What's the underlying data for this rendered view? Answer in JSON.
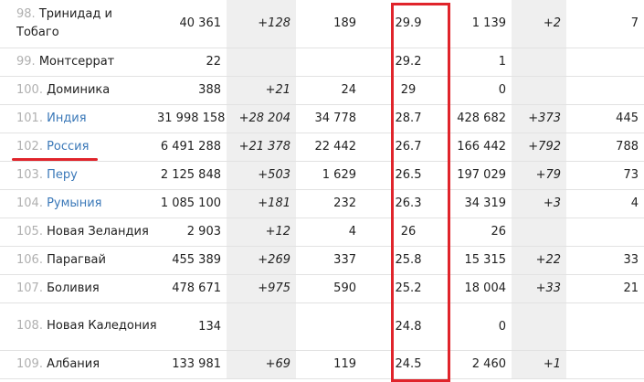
{
  "rows": [
    {
      "rank": "98.",
      "name": "Тринидад и Тобаго",
      "link": false,
      "c1": "40 361",
      "c2": "+128",
      "c3": "189",
      "c4": "29.9",
      "c5": "1 139",
      "c6": "+2",
      "c7": "7"
    },
    {
      "rank": "99.",
      "name": "Монтсеррат",
      "link": false,
      "c1": "22",
      "c2": "",
      "c3": "",
      "c4": "29.2",
      "c5": "1",
      "c6": "",
      "c7": ""
    },
    {
      "rank": "100.",
      "name": "Доминика",
      "link": false,
      "c1": "388",
      "c2": "+21",
      "c3": "24",
      "c4": "29",
      "c5": "0",
      "c6": "",
      "c7": ""
    },
    {
      "rank": "101.",
      "name": "Индия",
      "link": true,
      "c1": "31 998 158",
      "c2": "+28 204",
      "c3": "34 778",
      "c4": "28.7",
      "c5": "428 682",
      "c6": "+373",
      "c7": "445"
    },
    {
      "rank": "102.",
      "name": "Россия",
      "link": true,
      "c1": "6 491 288",
      "c2": "+21 378",
      "c3": "22 442",
      "c4": "26.7",
      "c5": "166 442",
      "c6": "+792",
      "c7": "788"
    },
    {
      "rank": "103.",
      "name": "Перу",
      "link": true,
      "c1": "2 125 848",
      "c2": "+503",
      "c3": "1 629",
      "c4": "26.5",
      "c5": "197 029",
      "c6": "+79",
      "c7": "73"
    },
    {
      "rank": "104.",
      "name": "Румыния",
      "link": true,
      "c1": "1 085 100",
      "c2": "+181",
      "c3": "232",
      "c4": "26.3",
      "c5": "34 319",
      "c6": "+3",
      "c7": "4"
    },
    {
      "rank": "105.",
      "name": "Новая Зеландия",
      "link": false,
      "c1": "2 903",
      "c2": "+12",
      "c3": "4",
      "c4": "26",
      "c5": "26",
      "c6": "",
      "c7": ""
    },
    {
      "rank": "106.",
      "name": "Парагвай",
      "link": false,
      "c1": "455 389",
      "c2": "+269",
      "c3": "337",
      "c4": "25.8",
      "c5": "15 315",
      "c6": "+22",
      "c7": "33"
    },
    {
      "rank": "107.",
      "name": "Боливия",
      "link": false,
      "c1": "478 671",
      "c2": "+975",
      "c3": "590",
      "c4": "25.2",
      "c5": "18 004",
      "c6": "+33",
      "c7": "21"
    },
    {
      "rank": "108.",
      "name": "Новая Каледония",
      "link": false,
      "c1": "134",
      "c2": "",
      "c3": "",
      "c4": "24.8",
      "c5": "0",
      "c6": "",
      "c7": ""
    },
    {
      "rank": "109.",
      "name": "Албания",
      "link": false,
      "c1": "133 981",
      "c2": "+69",
      "c3": "119",
      "c4": "24.5",
      "c5": "2 460",
      "c6": "+1",
      "c7": ""
    }
  ],
  "highlight_color": "#e0242b",
  "link_color": "#3a78b8"
}
